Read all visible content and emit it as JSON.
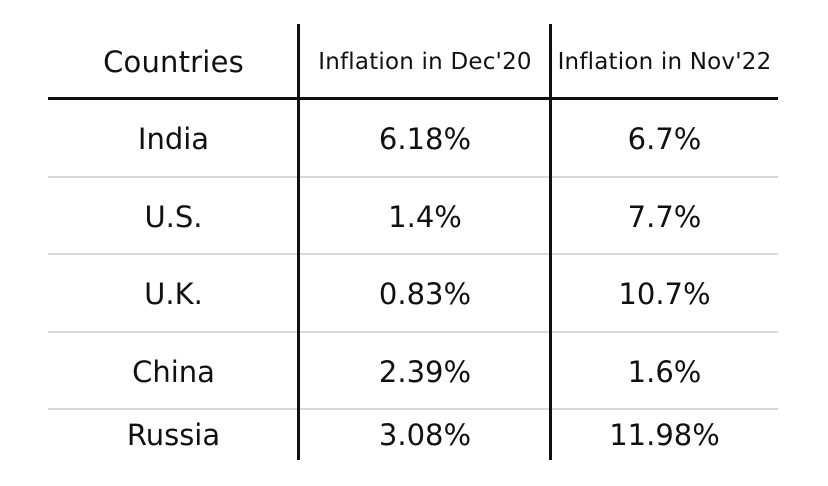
{
  "chart_data": {
    "type": "table",
    "columns": [
      "Countries",
      "Inflation in Dec'20",
      "Inflation in Nov'22"
    ],
    "rows": [
      [
        "India",
        "6.18%",
        "6.7%"
      ],
      [
        "U.S.",
        "1.4%",
        "7.7%"
      ],
      [
        "U.K.",
        "0.83%",
        "10.7%"
      ],
      [
        "China",
        "2.39%",
        "1.6%"
      ],
      [
        "Russia",
        "3.08%",
        "11.98%"
      ]
    ],
    "colors": {
      "text": "#111111",
      "header_rule": "#111111",
      "column_rule": "#111111",
      "row_rule": "#d9d9d9"
    }
  }
}
